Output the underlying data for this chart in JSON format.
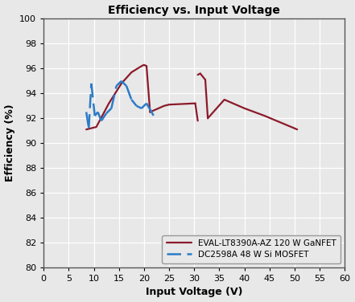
{
  "title": "Efficiency vs. Input Voltage",
  "xlabel": "Input Voltage (V)",
  "ylabel": "Efficiency (%)",
  "xlim": [
    0,
    60
  ],
  "ylim": [
    80,
    100
  ],
  "xticks": [
    0,
    5,
    10,
    15,
    20,
    25,
    30,
    35,
    40,
    45,
    50,
    55,
    60
  ],
  "yticks": [
    80,
    82,
    84,
    86,
    88,
    90,
    92,
    94,
    96,
    98,
    100
  ],
  "gan_color": "#8B1A2A",
  "mosfet_color": "#2B7BC8",
  "gan_segments": [
    {
      "x": [
        8.5,
        10.5,
        13.0,
        15.5,
        17.5,
        19.5,
        20.0,
        20.5
      ],
      "y": [
        91.1,
        91.3,
        93.2,
        94.8,
        95.7,
        96.2,
        96.3,
        96.2
      ]
    },
    {
      "x": [
        20.5,
        21.2
      ],
      "y": [
        96.2,
        92.5
      ]
    },
    {
      "x": [
        21.2,
        24.0,
        25.0,
        30.2
      ],
      "y": [
        92.5,
        93.0,
        93.1,
        93.2
      ]
    },
    {
      "x": [
        30.2,
        30.7
      ],
      "y": [
        93.2,
        91.8
      ]
    },
    {
      "x": [
        30.7,
        31.2
      ],
      "y": [
        95.5,
        95.6
      ]
    },
    {
      "x": [
        31.2,
        32.2
      ],
      "y": [
        95.6,
        95.1
      ]
    },
    {
      "x": [
        32.2,
        32.7
      ],
      "y": [
        95.1,
        92.0
      ]
    },
    {
      "x": [
        32.7,
        36.0,
        40.0,
        44.0,
        50.5
      ],
      "y": [
        92.0,
        93.5,
        92.8,
        92.2,
        91.1
      ]
    }
  ],
  "mosfet_segments": [
    {
      "x": [
        8.5,
        9.0
      ],
      "y": [
        92.5,
        91.2
      ]
    },
    {
      "x": [
        9.0,
        9.5
      ],
      "y": [
        91.2,
        94.8
      ]
    },
    {
      "x": [
        9.5,
        10.2
      ],
      "y": [
        94.8,
        92.2
      ]
    },
    {
      "x": [
        10.2,
        10.8
      ],
      "y": [
        92.2,
        92.5
      ]
    },
    {
      "x": [
        10.8,
        11.5
      ],
      "y": [
        92.5,
        91.8
      ]
    },
    {
      "x": [
        11.5,
        12.5
      ],
      "y": [
        91.8,
        92.4
      ]
    },
    {
      "x": [
        12.5,
        13.5
      ],
      "y": [
        92.4,
        92.8
      ]
    },
    {
      "x": [
        13.5,
        14.5
      ],
      "y": [
        92.8,
        94.6
      ]
    },
    {
      "x": [
        14.5,
        15.5
      ],
      "y": [
        94.6,
        95.0
      ]
    },
    {
      "x": [
        15.5,
        16.5
      ],
      "y": [
        95.0,
        94.6
      ]
    },
    {
      "x": [
        16.5,
        17.5
      ],
      "y": [
        94.6,
        93.5
      ]
    },
    {
      "x": [
        17.5,
        18.5
      ],
      "y": [
        93.5,
        93.0
      ]
    },
    {
      "x": [
        18.5,
        19.5
      ],
      "y": [
        93.0,
        92.8
      ]
    },
    {
      "x": [
        19.5,
        20.5
      ],
      "y": [
        92.8,
        93.2
      ]
    },
    {
      "x": [
        20.5,
        22.5
      ],
      "y": [
        93.2,
        91.8
      ]
    }
  ],
  "gan_label": "EVAL-LT8390A-AZ 120 W GaNFET",
  "mosfet_label": "DC2598A 48 W Si MOSFET",
  "background_color": "#e8e8e8",
  "plot_bg_color": "#e8e8e8",
  "grid_color": "#ffffff",
  "border_color": "#555555"
}
